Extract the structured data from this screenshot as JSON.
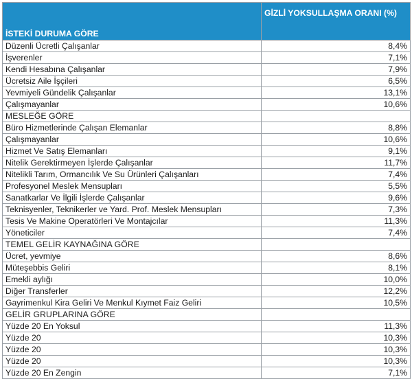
{
  "header": {
    "col1": "İSTEKİ DURUMA GÖRE",
    "col2": "GİZLİ YOKSULLAŞMA ORANI (%)"
  },
  "rows": [
    {
      "label": "Düzenli Ücretli Çalışanlar",
      "value": "8,4%"
    },
    {
      "label": "İşverenler",
      "value": "7,1%"
    },
    {
      "label": "Kendi Hesabına Çalışanlar",
      "value": "7,9%"
    },
    {
      "label": "Ücretsiz Aile İşçileri",
      "value": "6,5%"
    },
    {
      "label": "Yevmiyeli Gündelik Çalışanlar",
      "value": "13,1%"
    },
    {
      "label": "Çalışmayanlar",
      "value": "10,6%"
    },
    {
      "label": "MESLEĞE GÖRE",
      "value": "",
      "section": true
    },
    {
      "label": "Büro Hizmetlerinde Çalışan Elemanlar",
      "value": "8,8%"
    },
    {
      "label": "Çalışmayanlar",
      "value": "10,6%"
    },
    {
      "label": "Hizmet Ve Satış Elemanları",
      "value": "9,1%"
    },
    {
      "label": "Nitelik Gerektirmeyen İşlerde Çalışanlar",
      "value": "11,7%"
    },
    {
      "label": "Nitelikli Tarım, Ormancılık Ve Su Ürünleri Çalışanları",
      "value": "7,4%"
    },
    {
      "label": "Profesyonel Meslek Mensupları",
      "value": "5,5%"
    },
    {
      "label": "Sanatkarlar Ve İlgili İşlerde Çalışanlar",
      "value": "9,6%"
    },
    {
      "label": "Teknisyenler, Teknikerler ve Yard. Prof. Meslek Mensupları",
      "value": "7,3%"
    },
    {
      "label": "Tesis Ve Makine Operatörleri Ve Montajcılar",
      "value": "11,3%"
    },
    {
      "label": "Yöneticiler",
      "value": "7,4%"
    },
    {
      "label": "TEMEL GELİR KAYNAĞINA GÖRE",
      "value": "",
      "section": true
    },
    {
      "label": "Ücret, yevmiye",
      "value": "8,6%"
    },
    {
      "label": "Müteşebbis Geliri",
      "value": "8,1%"
    },
    {
      "label": "Emekli aylığı",
      "value": "10,0%"
    },
    {
      "label": "Diğer Transferler",
      "value": "12,2%"
    },
    {
      "label": "Gayrimenkul Kira Geliri Ve Menkul Kıymet Faiz Geliri",
      "value": "10,5%"
    },
    {
      "label": "GELİR GRUPLARINA GÖRE",
      "value": "",
      "section": true
    },
    {
      "label": "Yüzde 20 En Yoksul",
      "value": "11,3%"
    },
    {
      "label": "Yüzde 20",
      "value": "10,3%"
    },
    {
      "label": "Yüzde 20",
      "value": "10,3%"
    },
    {
      "label": "Yüzde 20",
      "value": "10,3%"
    },
    {
      "label": "Yüzde 20 En Zengin",
      "value": "7,1%"
    }
  ]
}
